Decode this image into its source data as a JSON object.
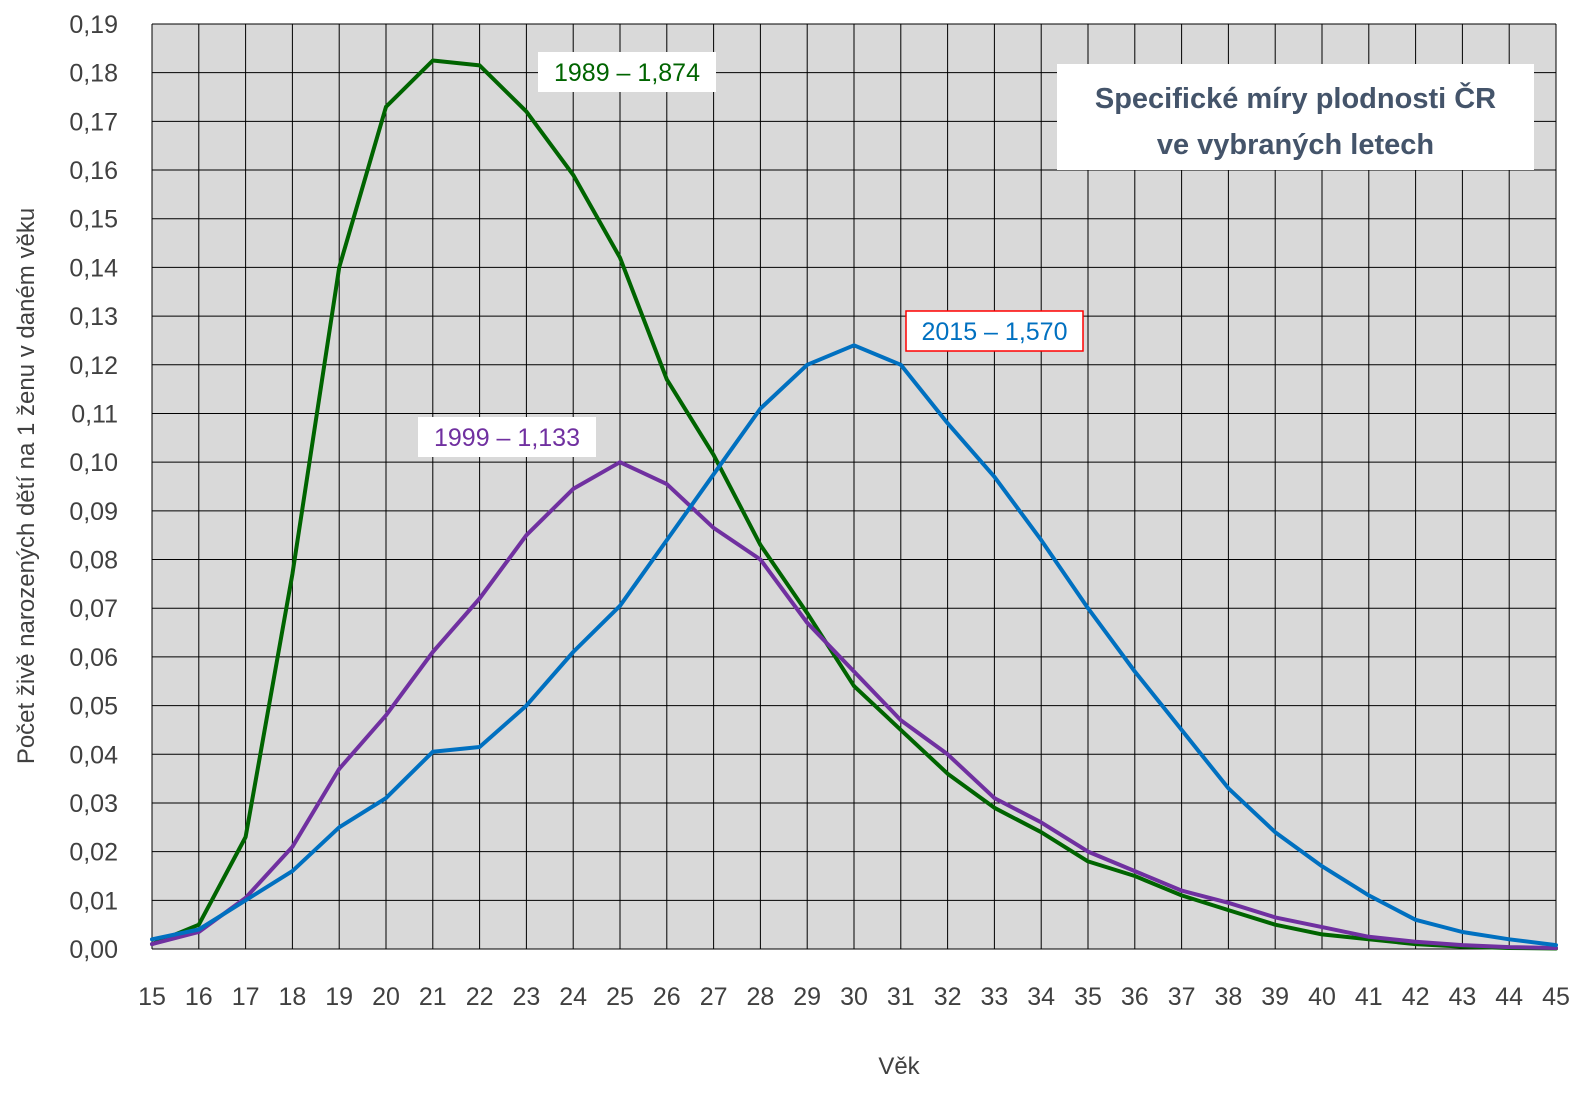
{
  "chart_data": {
    "type": "line",
    "title": [
      "Specifické míry plodnosti ČR",
      "ve vybraných letech"
    ],
    "xlabel": "Věk",
    "ylabel": "Počet živě narozených dětí na 1 ženu v daném věku",
    "x": [
      15,
      16,
      17,
      18,
      19,
      20,
      21,
      22,
      23,
      24,
      25,
      26,
      27,
      28,
      29,
      30,
      31,
      32,
      33,
      34,
      35,
      36,
      37,
      38,
      39,
      40,
      41,
      42,
      43,
      44,
      45
    ],
    "xlim": [
      15,
      45
    ],
    "ylim": [
      0,
      0.19
    ],
    "y_tick_labels": [
      "0,00",
      "0,01",
      "0,02",
      "0,03",
      "0,04",
      "0,05",
      "0,06",
      "0,07",
      "0,08",
      "0,09",
      "0,10",
      "0,11",
      "0,12",
      "0,13",
      "0,14",
      "0,15",
      "0,16",
      "0,17",
      "0,18",
      "0,19"
    ],
    "x_tick_labels": [
      "15",
      "16",
      "17",
      "18",
      "19",
      "20",
      "21",
      "22",
      "23",
      "24",
      "25",
      "26",
      "27",
      "28",
      "29",
      "30",
      "31",
      "32",
      "33",
      "34",
      "35",
      "36",
      "37",
      "38",
      "39",
      "40",
      "41",
      "42",
      "43",
      "44",
      "45"
    ],
    "grid": true,
    "series": [
      {
        "key": "s1989",
        "color": "#006400",
        "label": "1989 – 1,874",
        "values": [
          0.001,
          0.005,
          0.023,
          0.077,
          0.14,
          0.173,
          0.1825,
          0.1815,
          0.172,
          0.159,
          0.142,
          0.117,
          0.1015,
          0.083,
          0.069,
          0.054,
          0.045,
          0.036,
          0.029,
          0.024,
          0.018,
          0.015,
          0.011,
          0.008,
          0.005,
          0.003,
          0.002,
          0.001,
          0.0005,
          0.0002,
          0.0001
        ]
      },
      {
        "key": "s1999",
        "color": "#7030a0",
        "label": "1999 – 1,133",
        "values": [
          0.001,
          0.0035,
          0.0105,
          0.021,
          0.037,
          0.048,
          0.061,
          0.072,
          0.085,
          0.0945,
          0.1,
          0.0955,
          0.0865,
          0.08,
          0.067,
          0.057,
          0.047,
          0.04,
          0.031,
          0.026,
          0.02,
          0.016,
          0.012,
          0.0095,
          0.0065,
          0.0045,
          0.0025,
          0.0015,
          0.0008,
          0.0004,
          0.0002
        ]
      },
      {
        "key": "s2015",
        "color": "#0070c0",
        "label": "2015 – 1,570",
        "values": [
          0.002,
          0.004,
          0.01,
          0.016,
          0.025,
          0.031,
          0.0405,
          0.0415,
          0.05,
          0.061,
          0.0705,
          0.084,
          0.0975,
          0.111,
          0.12,
          0.124,
          0.12,
          0.108,
          0.097,
          0.084,
          0.07,
          0.057,
          0.045,
          0.033,
          0.024,
          0.017,
          0.011,
          0.006,
          0.0035,
          0.002,
          0.0008
        ]
      }
    ]
  }
}
